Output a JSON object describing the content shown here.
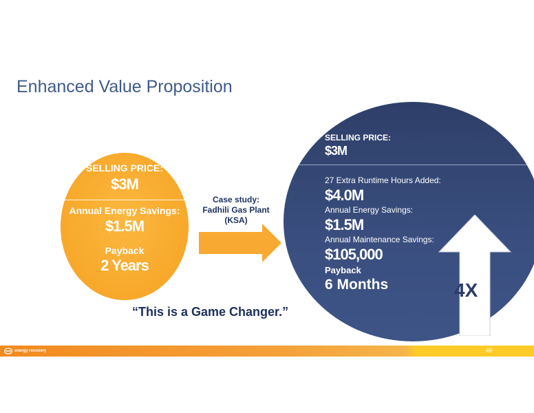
{
  "slide": {
    "title": "Enhanced Value Proposition",
    "quote": "“This is a Game Changer.”",
    "page_number": "49",
    "footer_logo_text": "energy recovery"
  },
  "left_panel": {
    "selling_price_label": "SELLING PRICE:",
    "selling_price_value": "$3M",
    "savings_label": "Annual Energy Savings:",
    "savings_value": "$1.5M",
    "payback_label": "Payback",
    "payback_value": "2 Years"
  },
  "case_study": {
    "line1": "Case study:",
    "line2": "Fadhili Gas Plant",
    "line3": "(KSA)"
  },
  "right_panel": {
    "selling_price_label": "SELLING PRICE:",
    "selling_price_value": "$3M",
    "runtime_label": "27 Extra Runtime Hours Added:",
    "runtime_value": "$4.0M",
    "energy_label": "Annual Energy Savings:",
    "energy_value": "$1.5M",
    "maintenance_label": "Annual Maintenance Savings:",
    "maintenance_value": "$105,000",
    "payback_label": "Payback",
    "payback_value": "6 Months",
    "multiplier": "4X"
  },
  "colors": {
    "orange": "#f6a221",
    "navy": "#34497a",
    "title_blue": "#3f5b88",
    "quote_navy": "#1c2f5e"
  }
}
